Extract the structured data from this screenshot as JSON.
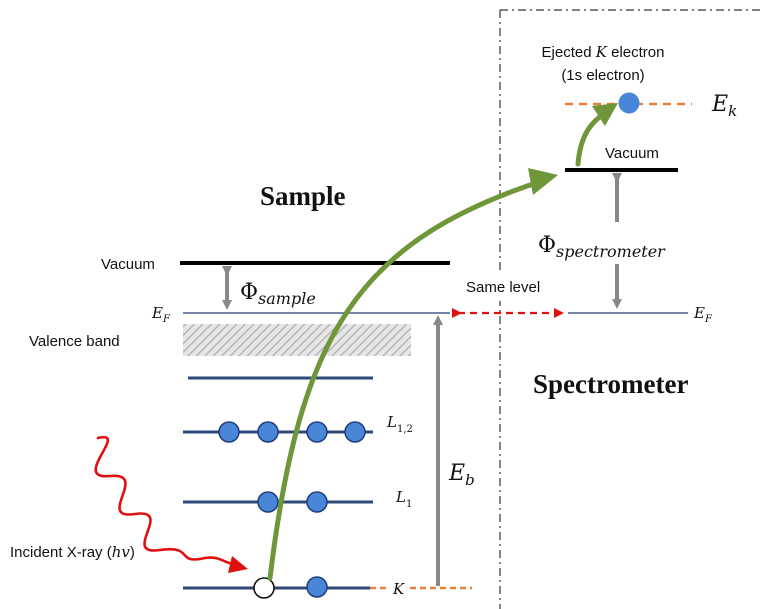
{
  "labels": {
    "sample_title": "Sample",
    "spectrometer_title": "Spectrometer",
    "vacuum_sample": "Vacuum",
    "vacuum_spectrometer": "Vacuum",
    "fermi_sample": "E",
    "fermi_sample_sub": "F",
    "fermi_spec": "E",
    "fermi_spec_sub": "F",
    "valence_band": "Valence band",
    "phi_sample_symbol": "Φ",
    "phi_sample_sub": "sample",
    "phi_spec_symbol": "Φ",
    "phi_spec_sub": "spectrometer",
    "same_level": "Same level",
    "binding_energy": "E",
    "binding_energy_sub": "b",
    "kinetic_energy": "E",
    "kinetic_energy_sub": "k",
    "ejected_line1_a": "Ejected ",
    "ejected_line1_k": "K",
    "ejected_line1_b": " electron",
    "ejected_line2": "(1s electron)",
    "level_L12": "L",
    "level_L12_sub": "1,2",
    "level_L1": "L",
    "level_L1_sub": "1",
    "level_K": "K",
    "incident_a": "Incident X-ray (",
    "incident_hv": "hv",
    "incident_b": ")"
  },
  "colors": {
    "level_line": "#2f4a7a",
    "electron_fill": "#4a86d8",
    "electron_stroke": "#1f3f7a",
    "arrow_green": "#70963a",
    "xray_red": "#e01010",
    "dashed_orange": "#e8803a",
    "gray_arrow": "#888888",
    "hatch": "#bbbbbb"
  }
}
